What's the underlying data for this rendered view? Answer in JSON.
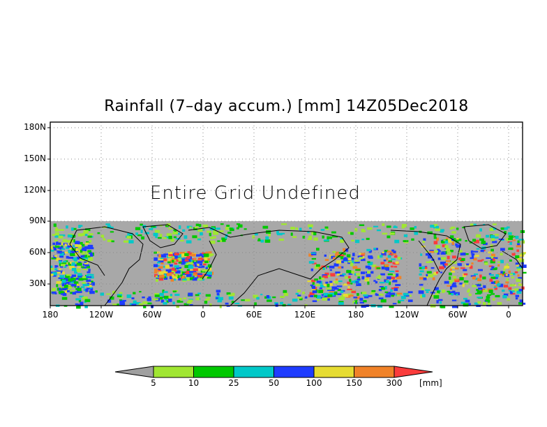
{
  "title": "Rainfall (7–day accum.) [mm] 14Z05Dec2018",
  "annotation": "Entire Grid Undefined",
  "y_ticks": [
    "180N",
    "150N",
    "120N",
    "90N",
    "60N",
    "30N"
  ],
  "x_ticks": [
    "180",
    "120W",
    "60W",
    "0",
    "60E",
    "120E",
    "180",
    "120W",
    "60W",
    "0"
  ],
  "colors": {
    "undefined_gray": "#a8a8a8",
    "land_outline": "#000000",
    "grid_dots": "#888888"
  },
  "colorbar": {
    "unit": "[mm]",
    "thresholds": [
      "5",
      "10",
      "25",
      "50",
      "100",
      "150",
      "300"
    ],
    "bin_colors": [
      "#a0a0a0",
      "#a0e632",
      "#00c800",
      "#00c8c8",
      "#1e3cff",
      "#e6dc32",
      "#f08228",
      "#fa3c3c"
    ]
  }
}
